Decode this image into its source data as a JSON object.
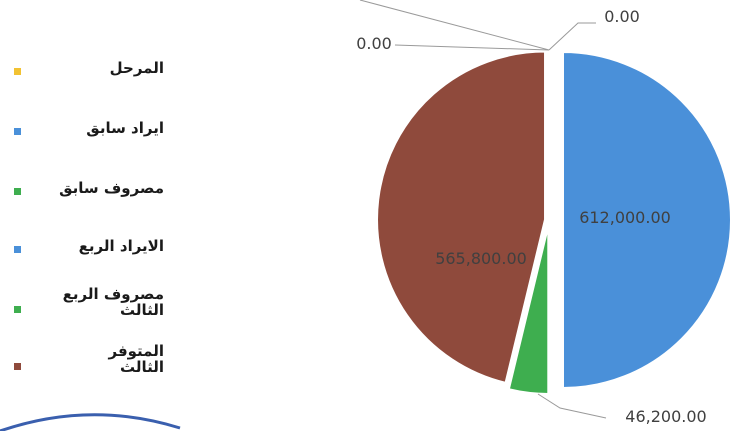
{
  "chart_data": {
    "type": "pie",
    "slices": [
      {
        "label": "المرحل",
        "value": 0,
        "color": "#f2c232",
        "data_label": "0.00"
      },
      {
        "label": "ايراد سابق",
        "value": 0,
        "color": "#4a90d9",
        "data_label": "0.00"
      },
      {
        "label": "مصروف سابق",
        "value": 0,
        "color": "#3eae4f",
        "data_label": ""
      },
      {
        "label": "الايراد الربع",
        "value": 612000,
        "color": "#4a90d9",
        "data_label": "612,000.00"
      },
      {
        "label": "مصروف الربع\nالثالث",
        "value": 46200,
        "color": "#3eae4f",
        "data_label": "46,200.00"
      },
      {
        "label": "المتوفر\nالثالث",
        "value": 565800,
        "color": "#8f4a3c",
        "data_label": "565,800.00"
      }
    ],
    "legend_position": "left",
    "legend": [
      "المرحل",
      "ايراد سابق",
      "مصروف سابق",
      "الايراد الربع",
      "مصروف الربع\nالثالث",
      "المتوفر\nالثالث"
    ]
  }
}
